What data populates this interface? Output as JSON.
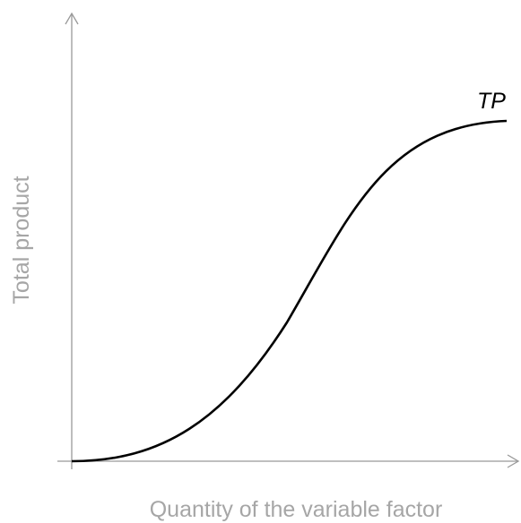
{
  "axes": {
    "x_label": "Quantity of the variable factor",
    "y_label": "Total product"
  },
  "curve": {
    "label": "TP"
  }
}
